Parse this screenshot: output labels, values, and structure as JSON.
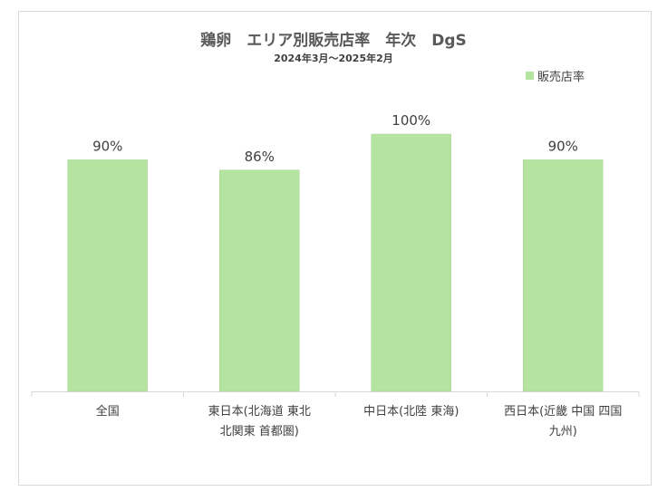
{
  "chart_data": {
    "type": "bar",
    "title": "鶏卵　エリア別販売店率　年次　DgS",
    "subtitle": "2024年3月～2025年2月",
    "categories": [
      [
        "全国"
      ],
      [
        "東日本(北海道 東北",
        "北関東 首都圏)"
      ],
      [
        "中日本(北陸 東海)"
      ],
      [
        "西日本(近畿 中国 四国",
        "九州)"
      ]
    ],
    "series": [
      {
        "name": "販売店率",
        "values": [
          90,
          86,
          100,
          90
        ],
        "value_labels": [
          "90%",
          "86%",
          "100%",
          "90%"
        ],
        "color": "#b5e4a0"
      }
    ],
    "ylim": [
      0,
      100
    ],
    "grid": false,
    "legend_position": "top-right"
  }
}
